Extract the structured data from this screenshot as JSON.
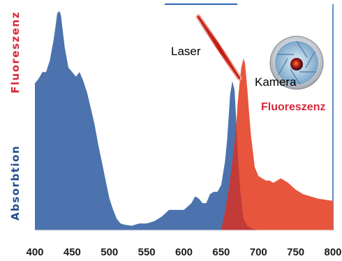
{
  "chart_data": {
    "type": "area",
    "x_ticks": [
      400,
      450,
      500,
      550,
      600,
      650,
      700,
      750,
      800
    ],
    "xlim": [
      400,
      800
    ],
    "ylim": [
      0,
      1
    ],
    "y_labels": {
      "top": "Fluoreszenz",
      "bottom": "Absorbtion"
    },
    "annotations": {
      "laser": "Laser",
      "camera": "Kamera",
      "fluorescence": "Fluoreszenz"
    },
    "grid": false,
    "colors": {
      "absorption": "#4c73ad",
      "emission": "#e8553d",
      "overlap": "#c03a38",
      "laser": "#e63026",
      "fluor_label": "#d62a3a",
      "absorb_label": "#1f4e8c",
      "frame": "#2a66b5"
    },
    "series": [
      {
        "key": "absorption",
        "x": [
          400,
          405,
          410,
          415,
          420,
          425,
          428,
          430,
          433,
          435,
          440,
          445,
          450,
          455,
          460,
          465,
          470,
          475,
          480,
          485,
          490,
          495,
          500,
          505,
          510,
          515,
          520,
          530,
          540,
          550,
          560,
          570,
          580,
          590,
          600,
          610,
          615,
          620,
          625,
          630,
          635,
          640,
          645,
          650,
          652,
          655,
          658,
          660,
          662,
          665,
          668,
          670,
          672,
          675,
          678,
          680,
          685,
          690,
          700
        ],
        "y": [
          0.65,
          0.67,
          0.7,
          0.7,
          0.75,
          0.84,
          0.91,
          0.96,
          0.97,
          0.95,
          0.81,
          0.72,
          0.7,
          0.68,
          0.7,
          0.66,
          0.61,
          0.54,
          0.47,
          0.38,
          0.3,
          0.22,
          0.14,
          0.09,
          0.05,
          0.03,
          0.025,
          0.02,
          0.03,
          0.03,
          0.04,
          0.06,
          0.09,
          0.09,
          0.09,
          0.12,
          0.15,
          0.14,
          0.12,
          0.12,
          0.16,
          0.17,
          0.17,
          0.2,
          0.24,
          0.3,
          0.4,
          0.5,
          0.6,
          0.66,
          0.62,
          0.5,
          0.35,
          0.2,
          0.1,
          0.05,
          0.02,
          0.01,
          0.0
        ]
      },
      {
        "key": "emission",
        "x": [
          650,
          655,
          660,
          665,
          670,
          672,
          675,
          677,
          680,
          682,
          685,
          688,
          690,
          695,
          700,
          705,
          710,
          715,
          720,
          725,
          730,
          735,
          740,
          750,
          760,
          780,
          800
        ],
        "y": [
          0.0,
          0.08,
          0.18,
          0.3,
          0.45,
          0.56,
          0.66,
          0.72,
          0.76,
          0.74,
          0.63,
          0.5,
          0.42,
          0.28,
          0.24,
          0.23,
          0.22,
          0.22,
          0.21,
          0.22,
          0.23,
          0.22,
          0.21,
          0.18,
          0.16,
          0.14,
          0.13
        ]
      }
    ]
  }
}
